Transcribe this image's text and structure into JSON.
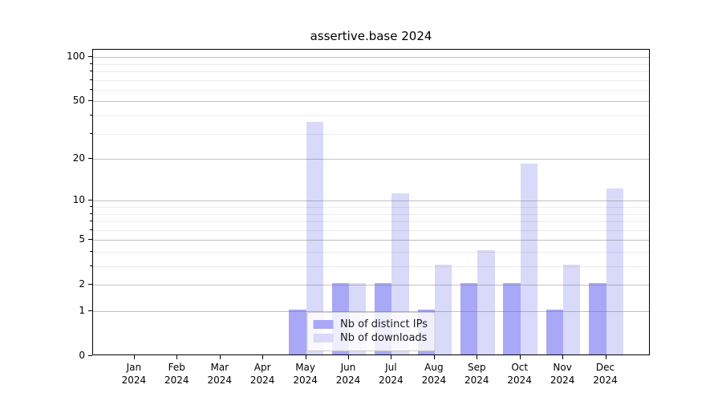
{
  "title": "assertive.base 2024",
  "chart_data": {
    "type": "bar",
    "title": "assertive.base 2024",
    "xlabel": "",
    "ylabel": "",
    "categories": [
      {
        "month": "Jan",
        "year": "2024"
      },
      {
        "month": "Feb",
        "year": "2024"
      },
      {
        "month": "Mar",
        "year": "2024"
      },
      {
        "month": "Apr",
        "year": "2024"
      },
      {
        "month": "May",
        "year": "2024"
      },
      {
        "month": "Jun",
        "year": "2024"
      },
      {
        "month": "Jul",
        "year": "2024"
      },
      {
        "month": "Aug",
        "year": "2024"
      },
      {
        "month": "Sep",
        "year": "2024"
      },
      {
        "month": "Oct",
        "year": "2024"
      },
      {
        "month": "Nov",
        "year": "2024"
      },
      {
        "month": "Dec",
        "year": "2024"
      }
    ],
    "series": [
      {
        "name": "Nb of distinct IPs",
        "color": "#a8a8f6",
        "values": [
          0,
          0,
          0,
          0,
          1,
          2,
          2,
          1,
          2,
          2,
          1,
          2
        ]
      },
      {
        "name": "Nb of downloads",
        "color": "#d9d9f9",
        "values": [
          0,
          0,
          0,
          0,
          35,
          2,
          11,
          3,
          4,
          18,
          3,
          12
        ]
      }
    ],
    "y_scale": "log10(1+v)",
    "y_major_ticks": [
      0,
      1,
      2,
      5,
      10,
      20,
      50,
      100
    ],
    "y_minor_ticks": [
      3,
      4,
      6,
      7,
      8,
      9,
      30,
      40,
      60,
      70,
      80,
      90
    ],
    "ylim": [
      0,
      112
    ],
    "grid": true,
    "legend_position": "lower center"
  },
  "legend": {
    "items": [
      "Nb of distinct IPs",
      "Nb of downloads"
    ]
  }
}
